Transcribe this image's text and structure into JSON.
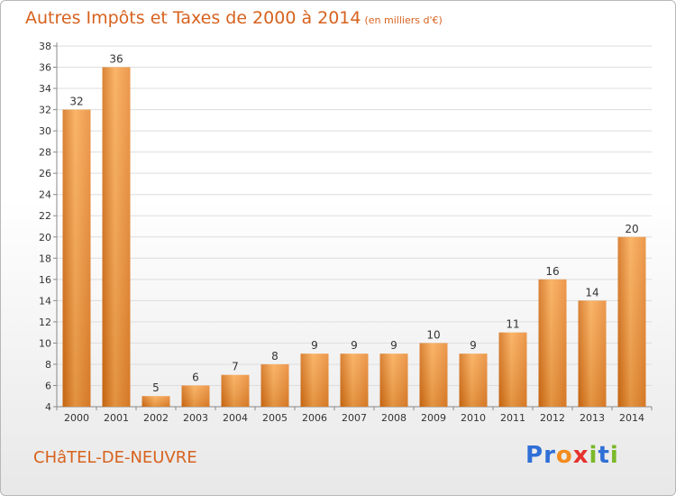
{
  "title": "Autres Impôts et Taxes de 2000 à 2014",
  "unit": "(en milliers d'€)",
  "town": "CHâTEL-DE-NEUVRE",
  "logo_text": "Proxiti",
  "colors": {
    "accent": "#d7621e",
    "bar_top": "#f9a84f",
    "bar_bottom": "#d36d14",
    "grid": "#dddddd"
  },
  "chart_data": {
    "type": "bar",
    "categories": [
      "2000",
      "2001",
      "2002",
      "2003",
      "2004",
      "2005",
      "2006",
      "2007",
      "2008",
      "2009",
      "2010",
      "2011",
      "2012",
      "2013",
      "2014"
    ],
    "values": [
      32,
      36,
      5,
      6,
      7,
      8,
      9,
      9,
      9,
      10,
      9,
      11,
      16,
      14,
      20
    ],
    "title": "Autres Impôts et Taxes de 2000 à 2014",
    "xlabel": "",
    "ylabel": "",
    "ylim": [
      4,
      38
    ],
    "yticks": [
      4,
      6,
      8,
      10,
      12,
      14,
      16,
      18,
      20,
      22,
      24,
      26,
      28,
      30,
      32,
      34,
      36,
      38
    ],
    "grid": true,
    "data_labels": true
  }
}
